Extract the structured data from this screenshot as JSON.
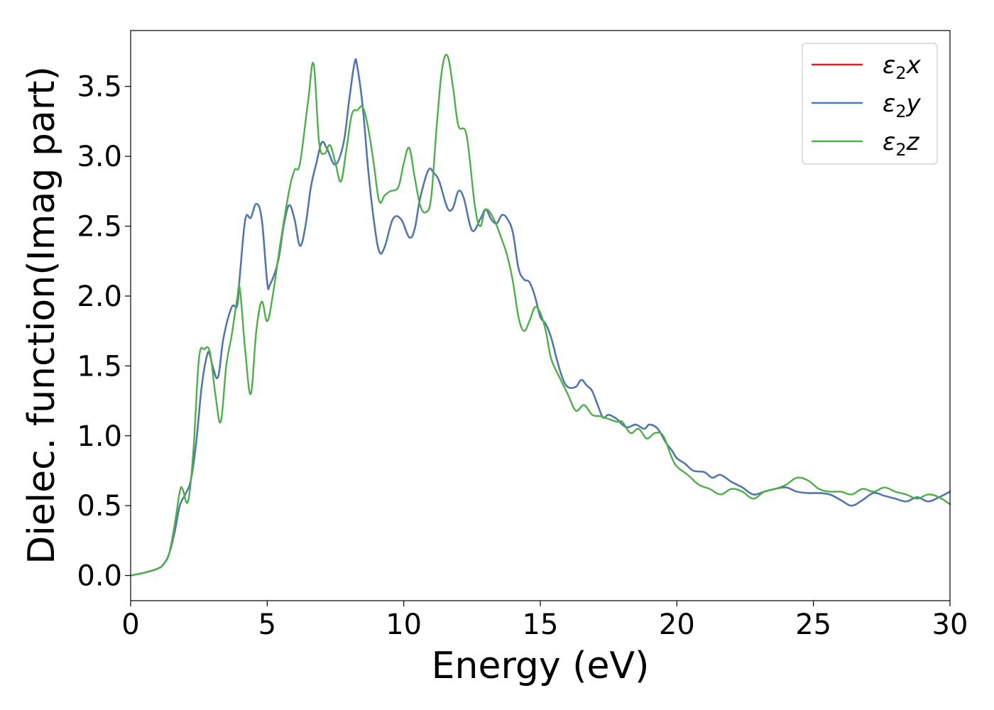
{
  "chart_data": {
    "type": "line",
    "xlabel": "Energy (eV)",
    "ylabel": "Dielec. function(Imag part)",
    "xlim": [
      0,
      30
    ],
    "ylim": [
      -0.18,
      3.9
    ],
    "xticks": [
      0,
      5,
      10,
      15,
      20,
      25,
      30
    ],
    "xtick_labels": [
      "0",
      "5",
      "10",
      "15",
      "20",
      "25",
      "30"
    ],
    "yticks": [
      0.0,
      0.5,
      1.0,
      1.5,
      2.0,
      2.5,
      3.0,
      3.5
    ],
    "ytick_labels": [
      "0.0",
      "0.5",
      "1.0",
      "1.5",
      "2.0",
      "2.5",
      "3.0",
      "3.5"
    ],
    "grid": false,
    "legend_position": "upper right",
    "series": [
      {
        "name": "ε₂x",
        "legend_base": "ε",
        "legend_sub": "2",
        "legend_suffix": "x",
        "color": "#e41a1c",
        "x": [
          0,
          0.5,
          1.0,
          1.2,
          1.4,
          1.6,
          1.8,
          2.0,
          2.2,
          2.4,
          2.6,
          2.8,
          2.9,
          3.0,
          3.2,
          3.4,
          3.7,
          3.9,
          4.0,
          4.2,
          4.4,
          4.6,
          4.8,
          5.0,
          5.1,
          5.4,
          5.6,
          5.8,
          6.0,
          6.2,
          6.4,
          6.6,
          6.8,
          7.0,
          7.2,
          7.5,
          7.8,
          8.0,
          8.2,
          8.3,
          8.5,
          8.7,
          8.9,
          9.1,
          9.3,
          9.6,
          9.9,
          10.2,
          10.4,
          10.6,
          10.9,
          11.1,
          11.3,
          11.6,
          11.8,
          12.0,
          12.2,
          12.5,
          12.8,
          13.0,
          13.2,
          13.4,
          13.6,
          13.8,
          14.0,
          14.2,
          14.4,
          14.6,
          14.8,
          15.0,
          15.2,
          15.4,
          15.6,
          15.8,
          16.0,
          16.3,
          16.5,
          16.7,
          16.9,
          17.1,
          17.3,
          17.5,
          17.8,
          18.0,
          18.2,
          18.5,
          18.8,
          19.0,
          19.3,
          19.6,
          19.8,
          20.0,
          20.3,
          20.6,
          21.0,
          21.3,
          21.6,
          22.0,
          22.4,
          22.8,
          23.2,
          23.6,
          24.0,
          24.4,
          24.8,
          25.2,
          25.6,
          26.0,
          26.4,
          26.8,
          27.2,
          27.6,
          28.0,
          28.4,
          28.8,
          29.2,
          29.6,
          30.0
        ],
        "y": [
          0.0,
          0.02,
          0.05,
          0.08,
          0.15,
          0.3,
          0.5,
          0.58,
          0.68,
          0.95,
          1.35,
          1.58,
          1.58,
          1.5,
          1.42,
          1.7,
          1.92,
          1.93,
          2.15,
          2.55,
          2.56,
          2.66,
          2.55,
          2.1,
          2.08,
          2.25,
          2.5,
          2.65,
          2.55,
          2.36,
          2.5,
          2.78,
          2.95,
          3.1,
          3.05,
          2.94,
          3.1,
          3.4,
          3.67,
          3.64,
          3.35,
          2.9,
          2.55,
          2.32,
          2.35,
          2.55,
          2.55,
          2.42,
          2.48,
          2.7,
          2.9,
          2.88,
          2.82,
          2.63,
          2.63,
          2.75,
          2.7,
          2.47,
          2.55,
          2.62,
          2.55,
          2.52,
          2.58,
          2.55,
          2.45,
          2.2,
          2.12,
          2.1,
          2.0,
          1.85,
          1.8,
          1.7,
          1.55,
          1.42,
          1.35,
          1.35,
          1.4,
          1.36,
          1.32,
          1.22,
          1.13,
          1.15,
          1.12,
          1.08,
          1.06,
          1.08,
          1.05,
          1.08,
          1.05,
          0.95,
          0.9,
          0.84,
          0.8,
          0.75,
          0.74,
          0.7,
          0.72,
          0.67,
          0.63,
          0.58,
          0.6,
          0.62,
          0.63,
          0.6,
          0.59,
          0.59,
          0.58,
          0.54,
          0.5,
          0.54,
          0.59,
          0.57,
          0.55,
          0.53,
          0.56,
          0.53,
          0.56,
          0.6
        ]
      },
      {
        "name": "ε₂y",
        "legend_base": "ε",
        "legend_sub": "2",
        "legend_suffix": "y",
        "color": "#4a7ab5",
        "x": [
          0,
          0.5,
          1.0,
          1.2,
          1.4,
          1.6,
          1.8,
          2.0,
          2.2,
          2.4,
          2.6,
          2.8,
          2.9,
          3.0,
          3.2,
          3.4,
          3.7,
          3.9,
          4.0,
          4.2,
          4.4,
          4.6,
          4.8,
          5.0,
          5.1,
          5.4,
          5.6,
          5.8,
          6.0,
          6.2,
          6.4,
          6.6,
          6.8,
          7.0,
          7.2,
          7.5,
          7.8,
          8.0,
          8.2,
          8.3,
          8.5,
          8.7,
          8.9,
          9.1,
          9.3,
          9.6,
          9.9,
          10.2,
          10.4,
          10.6,
          10.9,
          11.1,
          11.3,
          11.6,
          11.8,
          12.0,
          12.2,
          12.5,
          12.8,
          13.0,
          13.2,
          13.4,
          13.6,
          13.8,
          14.0,
          14.2,
          14.4,
          14.6,
          14.8,
          15.0,
          15.2,
          15.4,
          15.6,
          15.8,
          16.0,
          16.3,
          16.5,
          16.7,
          16.9,
          17.1,
          17.3,
          17.5,
          17.8,
          18.0,
          18.2,
          18.5,
          18.8,
          19.0,
          19.3,
          19.6,
          19.8,
          20.0,
          20.3,
          20.6,
          21.0,
          21.3,
          21.6,
          22.0,
          22.4,
          22.8,
          23.2,
          23.6,
          24.0,
          24.4,
          24.8,
          25.2,
          25.6,
          26.0,
          26.4,
          26.8,
          27.2,
          27.6,
          28.0,
          28.4,
          28.8,
          29.2,
          29.6,
          30.0
        ],
        "y": [
          0.0,
          0.02,
          0.05,
          0.08,
          0.15,
          0.3,
          0.5,
          0.58,
          0.68,
          0.95,
          1.35,
          1.58,
          1.58,
          1.5,
          1.42,
          1.7,
          1.92,
          1.93,
          2.15,
          2.55,
          2.56,
          2.66,
          2.55,
          2.1,
          2.08,
          2.25,
          2.5,
          2.65,
          2.55,
          2.36,
          2.5,
          2.78,
          2.95,
          3.1,
          3.05,
          2.94,
          3.1,
          3.4,
          3.67,
          3.64,
          3.35,
          2.9,
          2.55,
          2.32,
          2.35,
          2.55,
          2.55,
          2.42,
          2.48,
          2.7,
          2.9,
          2.88,
          2.82,
          2.63,
          2.63,
          2.75,
          2.7,
          2.47,
          2.55,
          2.62,
          2.55,
          2.52,
          2.58,
          2.55,
          2.45,
          2.2,
          2.12,
          2.1,
          2.0,
          1.85,
          1.8,
          1.7,
          1.55,
          1.42,
          1.35,
          1.35,
          1.4,
          1.36,
          1.32,
          1.22,
          1.13,
          1.15,
          1.12,
          1.08,
          1.06,
          1.08,
          1.05,
          1.08,
          1.05,
          0.95,
          0.9,
          0.84,
          0.8,
          0.75,
          0.74,
          0.7,
          0.72,
          0.67,
          0.63,
          0.58,
          0.6,
          0.62,
          0.63,
          0.6,
          0.59,
          0.59,
          0.58,
          0.54,
          0.5,
          0.54,
          0.59,
          0.57,
          0.55,
          0.53,
          0.56,
          0.53,
          0.56,
          0.6
        ]
      },
      {
        "name": "ε₂z",
        "legend_base": "ε",
        "legend_sub": "2",
        "legend_suffix": "z",
        "color": "#4daf4a",
        "x": [
          0,
          0.5,
          1.0,
          1.2,
          1.4,
          1.6,
          1.8,
          1.9,
          2.1,
          2.3,
          2.5,
          2.7,
          2.9,
          3.1,
          3.3,
          3.5,
          3.7,
          3.9,
          4.0,
          4.2,
          4.4,
          4.6,
          4.8,
          5.0,
          5.2,
          5.5,
          5.8,
          6.0,
          6.2,
          6.5,
          6.7,
          6.9,
          7.1,
          7.3,
          7.5,
          7.7,
          7.9,
          8.1,
          8.3,
          8.5,
          8.7,
          8.9,
          9.1,
          9.3,
          9.5,
          9.8,
          10.0,
          10.2,
          10.4,
          10.6,
          10.8,
          11.0,
          11.2,
          11.4,
          11.6,
          11.8,
          12.0,
          12.3,
          12.6,
          12.8,
          13.0,
          13.3,
          13.6,
          13.8,
          14.0,
          14.2,
          14.4,
          14.6,
          14.8,
          15.0,
          15.2,
          15.4,
          15.7,
          16.0,
          16.3,
          16.6,
          16.9,
          17.2,
          17.5,
          17.8,
          18.0,
          18.3,
          18.6,
          18.9,
          19.2,
          19.5,
          19.8,
          20.0,
          20.4,
          20.8,
          21.2,
          21.6,
          22.0,
          22.4,
          22.8,
          23.2,
          23.6,
          24.0,
          24.4,
          24.8,
          25.2,
          25.6,
          26.0,
          26.4,
          26.8,
          27.2,
          27.6,
          28.0,
          28.4,
          28.8,
          29.2,
          29.6,
          30.0
        ],
        "y": [
          0.0,
          0.02,
          0.05,
          0.08,
          0.15,
          0.35,
          0.6,
          0.62,
          0.53,
          0.9,
          1.55,
          1.62,
          1.6,
          1.3,
          1.1,
          1.5,
          1.72,
          1.98,
          2.05,
          1.6,
          1.3,
          1.75,
          1.96,
          1.82,
          2.0,
          2.4,
          2.75,
          2.9,
          2.95,
          3.4,
          3.66,
          3.1,
          3.02,
          3.08,
          2.95,
          2.82,
          3.05,
          3.3,
          3.33,
          3.35,
          3.2,
          2.95,
          2.68,
          2.72,
          2.75,
          2.78,
          2.95,
          3.06,
          2.85,
          2.65,
          2.6,
          2.7,
          3.2,
          3.62,
          3.72,
          3.5,
          3.22,
          3.15,
          2.65,
          2.5,
          2.62,
          2.55,
          2.4,
          2.28,
          2.1,
          1.85,
          1.75,
          1.82,
          1.92,
          1.88,
          1.75,
          1.55,
          1.42,
          1.3,
          1.18,
          1.22,
          1.15,
          1.14,
          1.12,
          1.1,
          1.1,
          1.02,
          1.05,
          0.98,
          1.02,
          1.0,
          0.85,
          0.78,
          0.72,
          0.65,
          0.62,
          0.58,
          0.62,
          0.6,
          0.55,
          0.6,
          0.62,
          0.65,
          0.7,
          0.68,
          0.62,
          0.6,
          0.6,
          0.58,
          0.62,
          0.6,
          0.63,
          0.6,
          0.58,
          0.55,
          0.58,
          0.56,
          0.51
        ]
      }
    ]
  }
}
